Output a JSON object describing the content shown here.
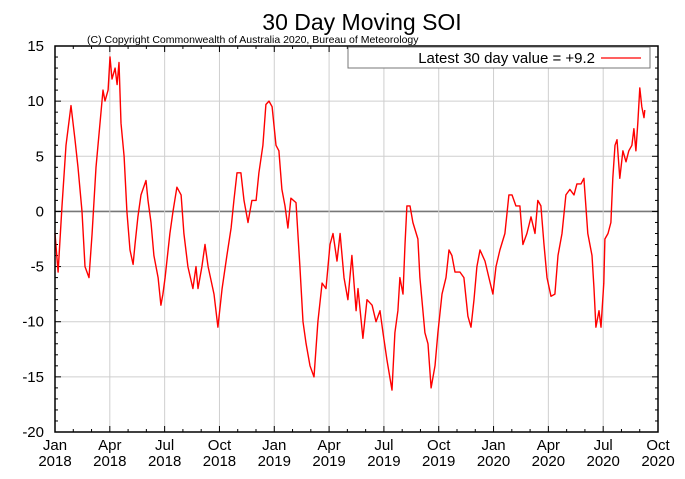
{
  "chart_data": {
    "type": "line",
    "title": "30 Day Moving SOI",
    "subtitle": "(C) Copyright Commonwealth of Australia 2020, Bureau of Meteorology",
    "xlabel": "",
    "ylabel": "",
    "xlim": [
      2018.0,
      2020.75
    ],
    "ylim": [
      -20,
      15
    ],
    "grid": true,
    "legend_position": "top-right",
    "y_ticks": [
      15,
      10,
      5,
      0,
      -5,
      -10,
      -15,
      -20
    ],
    "y_tick_labels": [
      "15",
      "10",
      "5",
      "0",
      "-5",
      "-10",
      "-15",
      "-20"
    ],
    "x_ticks": [
      2018.0,
      2018.25,
      2018.5,
      2018.75,
      2019.0,
      2019.25,
      2019.5,
      2019.75,
      2020.0,
      2020.25,
      2020.5,
      2020.75
    ],
    "x_tick_labels": [
      [
        "Jan",
        "2018"
      ],
      [
        "Apr",
        "2018"
      ],
      [
        "Jul",
        "2018"
      ],
      [
        "Oct",
        "2018"
      ],
      [
        "Jan",
        "2019"
      ],
      [
        "Apr",
        "2019"
      ],
      [
        "Jul",
        "2019"
      ],
      [
        "Oct",
        "2019"
      ],
      [
        "Jan",
        "2020"
      ],
      [
        "Apr",
        "2020"
      ],
      [
        "Jul",
        "2020"
      ],
      [
        "Oct",
        "2020"
      ]
    ],
    "series": [
      {
        "name": "Latest 30 day value = +9.2",
        "color": "#ff0000",
        "x_unit": "decimal year",
        "points": [
          [
            2018.0,
            -2.0
          ],
          [
            2018.014,
            -5.5
          ],
          [
            2018.032,
            0.5
          ],
          [
            2018.05,
            6.0
          ],
          [
            2018.073,
            9.6
          ],
          [
            2018.091,
            6.5
          ],
          [
            2018.105,
            4.0
          ],
          [
            2018.123,
            0.0
          ],
          [
            2018.137,
            -5.0
          ],
          [
            2018.155,
            -6.0
          ],
          [
            2018.169,
            -2.0
          ],
          [
            2018.187,
            4.0
          ],
          [
            2018.21,
            9.0
          ],
          [
            2018.219,
            11.0
          ],
          [
            2018.228,
            10.0
          ],
          [
            2018.242,
            11.0
          ],
          [
            2018.251,
            14.0
          ],
          [
            2018.26,
            12.0
          ],
          [
            2018.274,
            13.0
          ],
          [
            2018.283,
            11.5
          ],
          [
            2018.292,
            13.5
          ],
          [
            2018.301,
            8.0
          ],
          [
            2018.315,
            5.0
          ],
          [
            2018.328,
            0.0
          ],
          [
            2018.342,
            -3.5
          ],
          [
            2018.356,
            -4.8
          ],
          [
            2018.365,
            -3.0
          ],
          [
            2018.378,
            -0.5
          ],
          [
            2018.392,
            1.5
          ],
          [
            2018.415,
            2.8
          ],
          [
            2018.424,
            1.0
          ],
          [
            2018.438,
            -1.0
          ],
          [
            2018.451,
            -4.0
          ],
          [
            2018.47,
            -6.0
          ],
          [
            2018.483,
            -8.5
          ],
          [
            2018.492,
            -7.5
          ],
          [
            2018.502,
            -6.0
          ],
          [
            2018.524,
            -2.0
          ],
          [
            2018.538,
            0.0
          ],
          [
            2018.556,
            2.2
          ],
          [
            2018.575,
            1.5
          ],
          [
            2018.588,
            -2.0
          ],
          [
            2018.606,
            -5.0
          ],
          [
            2018.629,
            -7.0
          ],
          [
            2018.643,
            -5.0
          ],
          [
            2018.652,
            -7.0
          ],
          [
            2018.67,
            -5.0
          ],
          [
            2018.684,
            -3.0
          ],
          [
            2018.698,
            -5.0
          ],
          [
            2018.725,
            -7.5
          ],
          [
            2018.743,
            -10.5
          ],
          [
            2018.762,
            -7.0
          ],
          [
            2018.784,
            -4.0
          ],
          [
            2018.803,
            -1.5
          ],
          [
            2018.816,
            1.0
          ],
          [
            2018.83,
            3.5
          ],
          [
            2018.848,
            3.5
          ],
          [
            2018.862,
            1.0
          ],
          [
            2018.88,
            -1.0
          ],
          [
            2018.898,
            1.0
          ],
          [
            2018.917,
            1.0
          ],
          [
            2018.93,
            3.5
          ],
          [
            2018.948,
            6.0
          ],
          [
            2018.962,
            9.7
          ],
          [
            2018.976,
            10.0
          ],
          [
            2018.99,
            9.5
          ],
          [
            2019.008,
            6.0
          ],
          [
            2019.021,
            5.5
          ],
          [
            2019.035,
            2.0
          ],
          [
            2019.049,
            0.5
          ],
          [
            2019.062,
            -1.5
          ],
          [
            2019.076,
            1.2
          ],
          [
            2019.099,
            0.8
          ],
          [
            2019.117,
            -5.0
          ],
          [
            2019.131,
            -10.0
          ],
          [
            2019.145,
            -12.0
          ],
          [
            2019.163,
            -14.0
          ],
          [
            2019.181,
            -15.0
          ],
          [
            2019.199,
            -10.0
          ],
          [
            2019.218,
            -6.5
          ],
          [
            2019.236,
            -7.0
          ],
          [
            2019.254,
            -3.0
          ],
          [
            2019.268,
            -2.0
          ],
          [
            2019.286,
            -4.5
          ],
          [
            2019.3,
            -2.0
          ],
          [
            2019.318,
            -6.0
          ],
          [
            2019.336,
            -8.0
          ],
          [
            2019.354,
            -4.0
          ],
          [
            2019.373,
            -9.0
          ],
          [
            2019.382,
            -7.0
          ],
          [
            2019.404,
            -11.5
          ],
          [
            2019.423,
            -8.0
          ],
          [
            2019.446,
            -8.5
          ],
          [
            2019.464,
            -10.0
          ],
          [
            2019.482,
            -9.0
          ],
          [
            2019.496,
            -11.0
          ],
          [
            2019.514,
            -13.5
          ],
          [
            2019.537,
            -16.2
          ],
          [
            2019.55,
            -11.0
          ],
          [
            2019.564,
            -9.0
          ],
          [
            2019.573,
            -6.0
          ],
          [
            2019.587,
            -7.5
          ],
          [
            2019.596,
            -3.0
          ],
          [
            2019.605,
            0.5
          ],
          [
            2019.619,
            0.5
          ],
          [
            2019.632,
            -1.0
          ],
          [
            2019.655,
            -2.5
          ],
          [
            2019.664,
            -6.0
          ],
          [
            2019.687,
            -11.0
          ],
          [
            2019.701,
            -12.0
          ],
          [
            2019.715,
            -16.0
          ],
          [
            2019.733,
            -14.0
          ],
          [
            2019.746,
            -11.0
          ],
          [
            2019.765,
            -7.5
          ],
          [
            2019.783,
            -6.0
          ],
          [
            2019.797,
            -3.5
          ],
          [
            2019.81,
            -4.0
          ],
          [
            2019.824,
            -5.5
          ],
          [
            2019.847,
            -5.5
          ],
          [
            2019.865,
            -6.0
          ],
          [
            2019.883,
            -9.5
          ],
          [
            2019.897,
            -10.5
          ],
          [
            2019.911,
            -8.0
          ],
          [
            2019.924,
            -5.0
          ],
          [
            2019.938,
            -3.5
          ],
          [
            2019.961,
            -4.5
          ],
          [
            2019.979,
            -6.0
          ],
          [
            2019.997,
            -7.5
          ],
          [
            2020.011,
            -5.0
          ],
          [
            2020.029,
            -3.5
          ],
          [
            2020.052,
            -2.0
          ],
          [
            2020.07,
            1.5
          ],
          [
            2020.084,
            1.5
          ],
          [
            2020.102,
            0.5
          ],
          [
            2020.12,
            0.5
          ],
          [
            2020.134,
            -3.0
          ],
          [
            2020.152,
            -2.0
          ],
          [
            2020.171,
            -0.5
          ],
          [
            2020.189,
            -2.0
          ],
          [
            2020.202,
            1.0
          ],
          [
            2020.216,
            0.5
          ],
          [
            2020.23,
            -3.0
          ],
          [
            2020.244,
            -6.0
          ],
          [
            2020.262,
            -7.7
          ],
          [
            2020.28,
            -7.5
          ],
          [
            2020.294,
            -4.0
          ],
          [
            2020.312,
            -2.0
          ],
          [
            2020.33,
            1.5
          ],
          [
            2020.348,
            2.0
          ],
          [
            2020.367,
            1.5
          ],
          [
            2020.38,
            2.5
          ],
          [
            2020.399,
            2.5
          ],
          [
            2020.412,
            3.0
          ],
          [
            2020.43,
            -2.0
          ],
          [
            2020.449,
            -4.0
          ],
          [
            2020.458,
            -7.0
          ],
          [
            2020.467,
            -10.5
          ],
          [
            2020.481,
            -9.0
          ],
          [
            2020.49,
            -10.5
          ],
          [
            2020.503,
            -6.5
          ],
          [
            2020.508,
            -2.5
          ],
          [
            2020.522,
            -2.0
          ],
          [
            2020.535,
            -1.0
          ],
          [
            2020.544,
            3.0
          ],
          [
            2020.554,
            6.0
          ],
          [
            2020.563,
            6.5
          ],
          [
            2020.576,
            3.0
          ],
          [
            2020.59,
            5.5
          ],
          [
            2020.604,
            4.5
          ],
          [
            2020.617,
            5.5
          ],
          [
            2020.631,
            6.0
          ],
          [
            2020.64,
            7.5
          ],
          [
            2020.649,
            5.5
          ],
          [
            2020.658,
            8.0
          ],
          [
            2020.667,
            11.2
          ],
          [
            2020.676,
            9.5
          ],
          [
            2020.686,
            8.5
          ],
          [
            2020.69,
            9.2
          ]
        ]
      }
    ],
    "legend": [
      {
        "label": "Latest 30 day value = +9.2",
        "color": "#ff0000"
      }
    ]
  }
}
